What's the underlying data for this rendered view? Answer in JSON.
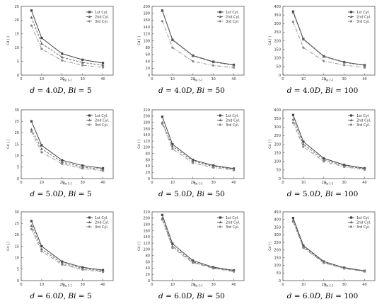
{
  "legend_labels": [
    "1st Cyl.",
    "2nd Cyl.",
    "3rd Cyl."
  ],
  "axis_labels": {
    "x": "Re [-]",
    "y": "Cd [-]"
  },
  "chart_data": [
    {
      "type": "line",
      "caption": "d = 4.0D, Bi = 5",
      "xlim": [
        0,
        45
      ],
      "ylim": [
        0,
        25
      ],
      "xticks": [
        0,
        10,
        20,
        30,
        40
      ],
      "yticks": [
        0,
        5,
        10,
        15,
        20,
        25
      ],
      "x": [
        5,
        10,
        20,
        30,
        40
      ],
      "series": [
        {
          "name": "1st Cyl.",
          "values": [
            23.5,
            13.5,
            7.8,
            5.6,
            4.4
          ]
        },
        {
          "name": "2nd Cyl.",
          "values": [
            21.0,
            11.5,
            6.5,
            4.6,
            3.6
          ]
        },
        {
          "name": "3rd Cyl.",
          "values": [
            18.0,
            9.5,
            5.3,
            3.6,
            2.8
          ]
        }
      ]
    },
    {
      "type": "line",
      "caption": "d = 4.0D, Bi = 50",
      "xlim": [
        0,
        45
      ],
      "ylim": [
        0,
        200
      ],
      "xticks": [
        0,
        10,
        20,
        30,
        40
      ],
      "yticks": [
        0,
        20,
        40,
        60,
        80,
        100,
        120,
        140,
        160,
        180,
        200
      ],
      "x": [
        5,
        10,
        20,
        30,
        40
      ],
      "series": [
        {
          "name": "1st Cyl.",
          "values": [
            188,
            103,
            57,
            39,
            30
          ]
        },
        {
          "name": "2nd Cyl.",
          "values": [
            187,
            102,
            56,
            38,
            29
          ]
        },
        {
          "name": "3rd Cyl.",
          "values": [
            157,
            80,
            40,
            28,
            22
          ]
        }
      ]
    },
    {
      "type": "line",
      "caption": "d = 4.0D, Bi = 100",
      "xlim": [
        0,
        45
      ],
      "ylim": [
        0,
        400
      ],
      "xticks": [
        0,
        10,
        20,
        30,
        40
      ],
      "yticks": [
        0,
        50,
        100,
        150,
        200,
        250,
        300,
        350,
        400
      ],
      "x": [
        5,
        10,
        20,
        30,
        40
      ],
      "series": [
        {
          "name": "1st Cyl.",
          "values": [
            370,
            210,
            110,
            76,
            58
          ]
        },
        {
          "name": "2nd Cyl.",
          "values": [
            365,
            208,
            108,
            74,
            56
          ]
        },
        {
          "name": "3rd Cyl.",
          "values": [
            310,
            160,
            82,
            58,
            44
          ]
        }
      ]
    },
    {
      "type": "line",
      "caption": "d = 5.0D, Bi = 5",
      "xlim": [
        0,
        45
      ],
      "ylim": [
        0,
        30
      ],
      "xticks": [
        0,
        10,
        20,
        30,
        40
      ],
      "yticks": [
        0,
        5,
        10,
        15,
        20,
        25,
        30
      ],
      "x": [
        5,
        10,
        20,
        30,
        40
      ],
      "series": [
        {
          "name": "1st Cyl.",
          "values": [
            25.0,
            14.5,
            8.0,
            5.7,
            4.5
          ]
        },
        {
          "name": "2nd Cyl.",
          "values": [
            21.5,
            13.0,
            7.2,
            5.0,
            4.0
          ]
        },
        {
          "name": "3rd Cyl.",
          "values": [
            20.5,
            11.5,
            6.4,
            4.4,
            3.4
          ]
        }
      ]
    },
    {
      "type": "line",
      "caption": "d = 5.0D, Bi = 50",
      "xlim": [
        0,
        45
      ],
      "ylim": [
        0,
        220
      ],
      "xticks": [
        0,
        10,
        20,
        30,
        40
      ],
      "yticks": [
        0,
        20,
        40,
        60,
        80,
        100,
        120,
        140,
        160,
        180,
        200,
        220
      ],
      "x": [
        5,
        10,
        20,
        30,
        40
      ],
      "series": [
        {
          "name": "1st Cyl.",
          "values": [
            198,
            110,
            60,
            42,
            32
          ]
        },
        {
          "name": "2nd Cyl.",
          "values": [
            180,
            103,
            56,
            39,
            30
          ]
        },
        {
          "name": "3rd Cyl.",
          "values": [
            175,
            95,
            50,
            35,
            27
          ]
        }
      ]
    },
    {
      "type": "line",
      "caption": "d = 5.0D, Bi = 100",
      "xlim": [
        0,
        45
      ],
      "ylim": [
        0,
        400
      ],
      "xticks": [
        0,
        10,
        20,
        30,
        40
      ],
      "yticks": [
        0,
        50,
        100,
        150,
        200,
        250,
        300,
        350,
        400
      ],
      "x": [
        5,
        10,
        20,
        30,
        40
      ],
      "series": [
        {
          "name": "1st Cyl.",
          "values": [
            370,
            215,
            118,
            80,
            60
          ]
        },
        {
          "name": "2nd Cyl.",
          "values": [
            345,
            200,
            110,
            75,
            56
          ]
        },
        {
          "name": "3rd Cyl.",
          "values": [
            325,
            185,
            100,
            68,
            52
          ]
        }
      ]
    },
    {
      "type": "line",
      "caption": "d = 6.0D, Bi = 5",
      "xlim": [
        0,
        45
      ],
      "ylim": [
        0,
        30
      ],
      "xticks": [
        0,
        10,
        20,
        30,
        40
      ],
      "yticks": [
        0,
        5,
        10,
        15,
        20,
        25,
        30
      ],
      "x": [
        5,
        10,
        20,
        30,
        40
      ],
      "series": [
        {
          "name": "1st Cyl.",
          "values": [
            26.0,
            15.0,
            8.3,
            5.8,
            4.6
          ]
        },
        {
          "name": "2nd Cyl.",
          "values": [
            24.0,
            13.8,
            7.6,
            5.3,
            4.2
          ]
        },
        {
          "name": "3rd Cyl.",
          "values": [
            22.5,
            12.8,
            7.0,
            4.8,
            3.8
          ]
        }
      ]
    },
    {
      "type": "line",
      "caption": "d = 6.0D, Bi = 50",
      "xlim": [
        0,
        45
      ],
      "ylim": [
        0,
        220
      ],
      "xticks": [
        0,
        10,
        20,
        30,
        40
      ],
      "yticks": [
        0,
        20,
        40,
        60,
        80,
        100,
        120,
        140,
        160,
        180,
        200,
        220
      ],
      "x": [
        5,
        10,
        20,
        30,
        40
      ],
      "series": [
        {
          "name": "1st Cyl.",
          "values": [
            210,
            118,
            64,
            43,
            33
          ]
        },
        {
          "name": "2nd Cyl.",
          "values": [
            200,
            110,
            60,
            41,
            31
          ]
        },
        {
          "name": "3rd Cyl.",
          "values": [
            195,
            105,
            57,
            39,
            29
          ]
        }
      ]
    },
    {
      "type": "line",
      "caption": "d = 6.0D, Bi = 100",
      "xlim": [
        0,
        45
      ],
      "ylim": [
        0,
        450
      ],
      "xticks": [
        0,
        10,
        20,
        30,
        40
      ],
      "yticks": [
        0,
        50,
        100,
        150,
        200,
        250,
        300,
        350,
        400,
        450
      ],
      "x": [
        5,
        10,
        20,
        30,
        40
      ],
      "series": [
        {
          "name": "1st Cyl.",
          "values": [
            410,
            230,
            125,
            85,
            64
          ]
        },
        {
          "name": "2nd Cyl.",
          "values": [
            395,
            222,
            120,
            82,
            62
          ]
        },
        {
          "name": "3rd Cyl.",
          "values": [
            385,
            215,
            116,
            79,
            60
          ]
        }
      ]
    }
  ]
}
